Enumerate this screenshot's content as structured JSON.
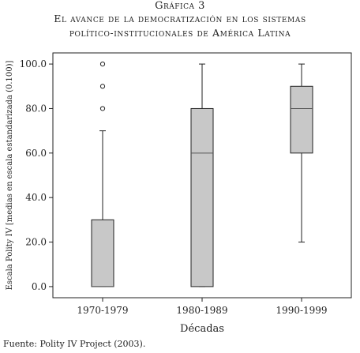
{
  "header": {
    "line1": "Gráfica 3",
    "line2": "El avance de la democratización en los sistemas",
    "line3": "político-institucionales de América Latina"
  },
  "chart_data": {
    "type": "boxplot",
    "xlabel": "Décadas",
    "ylabel": "Escala Polity IV [medias en escala estandarizada (0.100)]",
    "ylim": [
      -5,
      105
    ],
    "yticks": [
      0,
      20,
      40,
      60,
      80,
      100
    ],
    "ytick_labels": [
      "0.0",
      "20.0",
      "40.0",
      "60.0",
      "80.0",
      "100.0"
    ],
    "categories": [
      "1970-1979",
      "1980-1989",
      "1990-1999"
    ],
    "boxes": [
      {
        "category": "1970-1979",
        "whisker_low": 0,
        "q1": 0,
        "median": 0,
        "q3": 30,
        "whisker_high": 70,
        "outliers": [
          80,
          90,
          100
        ]
      },
      {
        "category": "1980-1989",
        "whisker_low": 0,
        "q1": 0,
        "median": 60,
        "q3": 80,
        "whisker_high": 100,
        "outliers": []
      },
      {
        "category": "1990-1999",
        "whisker_low": 20,
        "q1": 60,
        "median": 80,
        "q3": 90,
        "whisker_high": 100,
        "outliers": []
      }
    ],
    "grid": false,
    "colors": {
      "box_fill": "#c8c8c8",
      "stroke": "#222222"
    }
  },
  "footer": {
    "source": "Fuente: Polity IV Project (2003)."
  }
}
